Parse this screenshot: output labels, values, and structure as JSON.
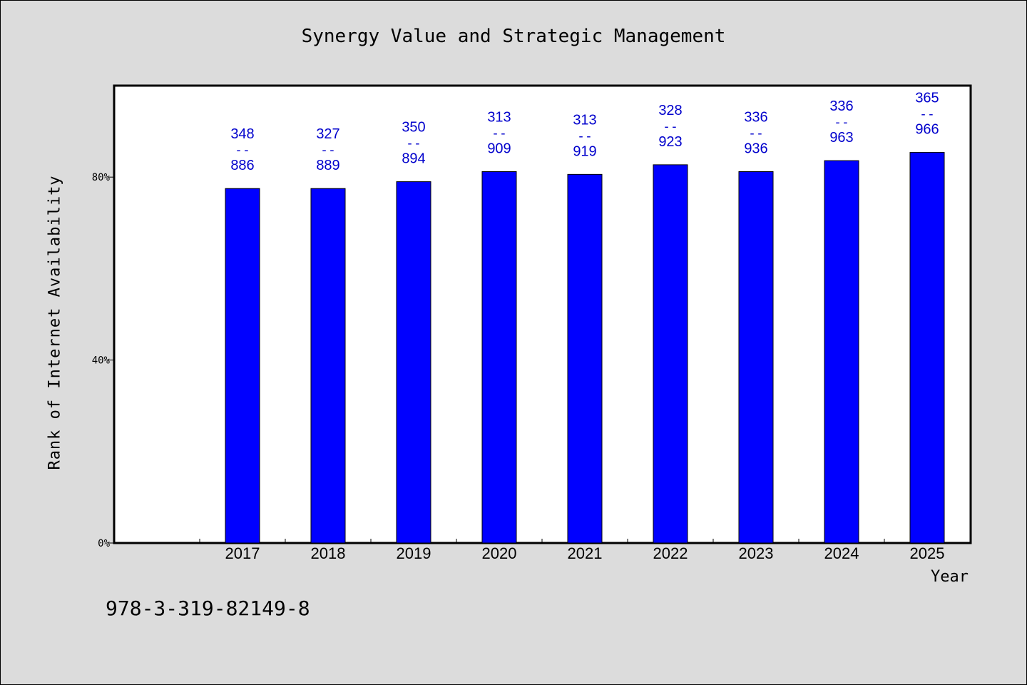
{
  "chart_data": {
    "type": "bar",
    "title": "Synergy Value and Strategic Management",
    "xlabel": "Year",
    "ylabel": "Rank of Internet Availability",
    "categories": [
      "2017",
      "2018",
      "2019",
      "2020",
      "2021",
      "2022",
      "2023",
      "2024",
      "2025"
    ],
    "values": [
      77.5,
      77.5,
      79,
      81.2,
      80.6,
      82.7,
      81.2,
      83.6,
      85.4
    ],
    "label_top": [
      "348",
      "327",
      "350",
      "313",
      "313",
      "328",
      "336",
      "336",
      "365"
    ],
    "label_separator": "--",
    "label_bottom": [
      "886",
      "889",
      "894",
      "909",
      "919",
      "923",
      "936",
      "963",
      "966"
    ],
    "yticks": [
      0,
      40,
      80
    ],
    "ytick_labels": [
      "0%",
      "40%",
      "80%"
    ],
    "ylim": [
      0,
      100
    ],
    "grid": false,
    "bar_color": "#0000ff",
    "label_color": "#0000cc",
    "plot_background": "#ffffff"
  },
  "footnote": "978-3-319-82149-8"
}
